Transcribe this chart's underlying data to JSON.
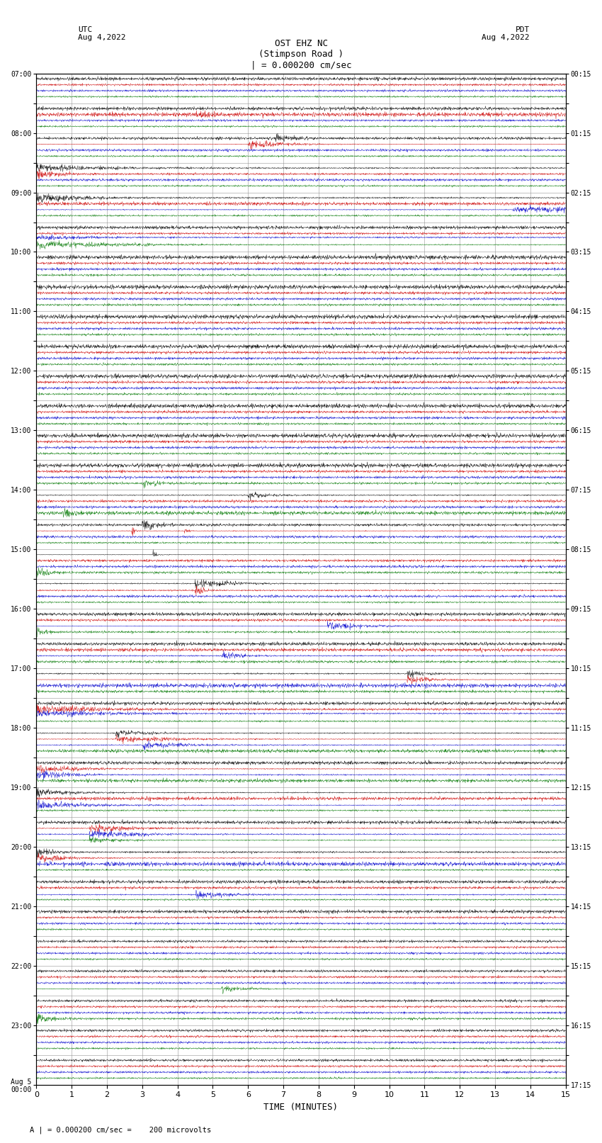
{
  "title_line1": "OST EHZ NC",
  "title_line2": "(Stimpson Road )",
  "title_line3": "| = 0.000200 cm/sec",
  "label_utc": "UTC",
  "label_date_left": "Aug 4,2022",
  "label_pdt": "PDT",
  "label_date_right": "Aug 4,2022",
  "xlabel": "TIME (MINUTES)",
  "footer": "A | = 0.000200 cm/sec =    200 microvolts",
  "bg_color": "#ffffff",
  "grid_color": "#888888",
  "trace_colors": [
    "#000000",
    "#cc0000",
    "#0000cc",
    "#007700"
  ],
  "num_rows": 34,
  "x_ticks": [
    0,
    1,
    2,
    3,
    4,
    5,
    6,
    7,
    8,
    9,
    10,
    11,
    12,
    13,
    14,
    15
  ],
  "utc_labels_even": [
    "07:00",
    "08:00",
    "09:00",
    "10:00",
    "11:00",
    "12:00",
    "13:00",
    "14:00",
    "15:00",
    "16:00",
    "17:00",
    "18:00",
    "19:00",
    "20:00",
    "21:00",
    "22:00",
    "23:00",
    "Aug 5\n00:00"
  ],
  "pdt_labels_even": [
    "00:15",
    "01:15",
    "02:15",
    "03:15",
    "04:15",
    "05:15",
    "06:15",
    "07:15",
    "08:15",
    "09:15",
    "10:15",
    "11:15",
    "12:15",
    "13:15",
    "14:15",
    "15:15",
    "16:15",
    "17:15"
  ],
  "seed": 42
}
